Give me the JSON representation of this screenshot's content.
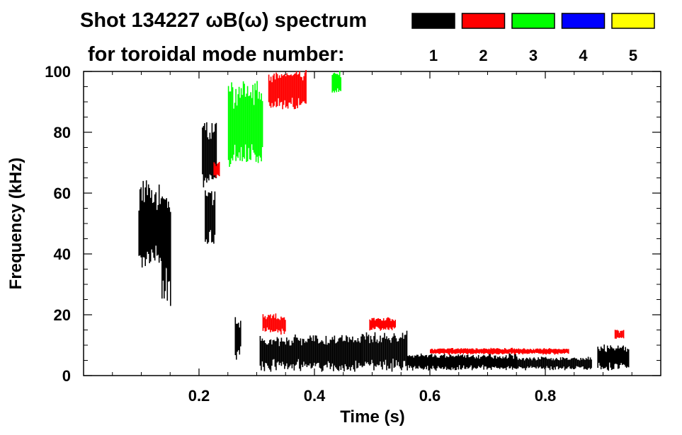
{
  "chart_data": {
    "type": "spectrogram",
    "title_line1": "Shot 134227 ωB(ω) spectrum",
    "title_line2": "for toroidal mode number:",
    "xlabel": "Time (s)",
    "ylabel": "Frequency (kHz)",
    "xlim": [
      0.0,
      1.0
    ],
    "ylim": [
      0,
      100
    ],
    "x_ticks": [
      "0.2",
      "0.4",
      "0.6",
      "0.8"
    ],
    "x_tick_values": [
      0.2,
      0.4,
      0.6,
      0.8
    ],
    "y_ticks": [
      "0",
      "20",
      "40",
      "60",
      "80",
      "100"
    ],
    "y_tick_values": [
      0,
      20,
      40,
      60,
      80,
      100
    ],
    "legend": [
      {
        "label": "1",
        "color": "#000000"
      },
      {
        "label": "2",
        "color": "#ff0000"
      },
      {
        "label": "3",
        "color": "#00ff00"
      },
      {
        "label": "4",
        "color": "#0000ff"
      },
      {
        "label": "5",
        "color": "#ffff00"
      }
    ],
    "modes": [
      {
        "mode": "1",
        "color": "#000000",
        "regions": [
          {
            "t0": 0.095,
            "t1": 0.145,
            "f0": 36,
            "f1": 62
          },
          {
            "t0": 0.135,
            "t1": 0.15,
            "f0": 25,
            "f1": 58
          },
          {
            "t0": 0.205,
            "t1": 0.23,
            "f0": 62,
            "f1": 83
          },
          {
            "t0": 0.21,
            "t1": 0.228,
            "f0": 42,
            "f1": 62
          },
          {
            "t0": 0.262,
            "t1": 0.272,
            "f0": 5,
            "f1": 20
          },
          {
            "t0": 0.305,
            "t1": 0.48,
            "f0": 2,
            "f1": 13
          },
          {
            "t0": 0.48,
            "t1": 0.56,
            "f0": 2,
            "f1": 14
          },
          {
            "t0": 0.56,
            "t1": 0.75,
            "f0": 2,
            "f1": 7
          },
          {
            "t0": 0.75,
            "t1": 0.88,
            "f0": 2,
            "f1": 6
          },
          {
            "t0": 0.89,
            "t1": 0.945,
            "f0": 2,
            "f1": 10
          }
        ]
      },
      {
        "mode": "2",
        "color": "#ff0000",
        "regions": [
          {
            "t0": 0.32,
            "t1": 0.385,
            "f0": 88,
            "f1": 100
          },
          {
            "t0": 0.225,
            "t1": 0.235,
            "f0": 65,
            "f1": 70
          },
          {
            "t0": 0.31,
            "t1": 0.35,
            "f0": 14,
            "f1": 20
          },
          {
            "t0": 0.495,
            "t1": 0.54,
            "f0": 15,
            "f1": 19
          },
          {
            "t0": 0.6,
            "t1": 0.84,
            "f0": 7,
            "f1": 9
          },
          {
            "t0": 0.92,
            "t1": 0.935,
            "f0": 12,
            "f1": 15
          }
        ]
      },
      {
        "mode": "3",
        "color": "#00ff00",
        "regions": [
          {
            "t0": 0.25,
            "t1": 0.31,
            "f0": 70,
            "f1": 95
          },
          {
            "t0": 0.43,
            "t1": 0.445,
            "f0": 93,
            "f1": 100
          }
        ]
      }
    ]
  }
}
